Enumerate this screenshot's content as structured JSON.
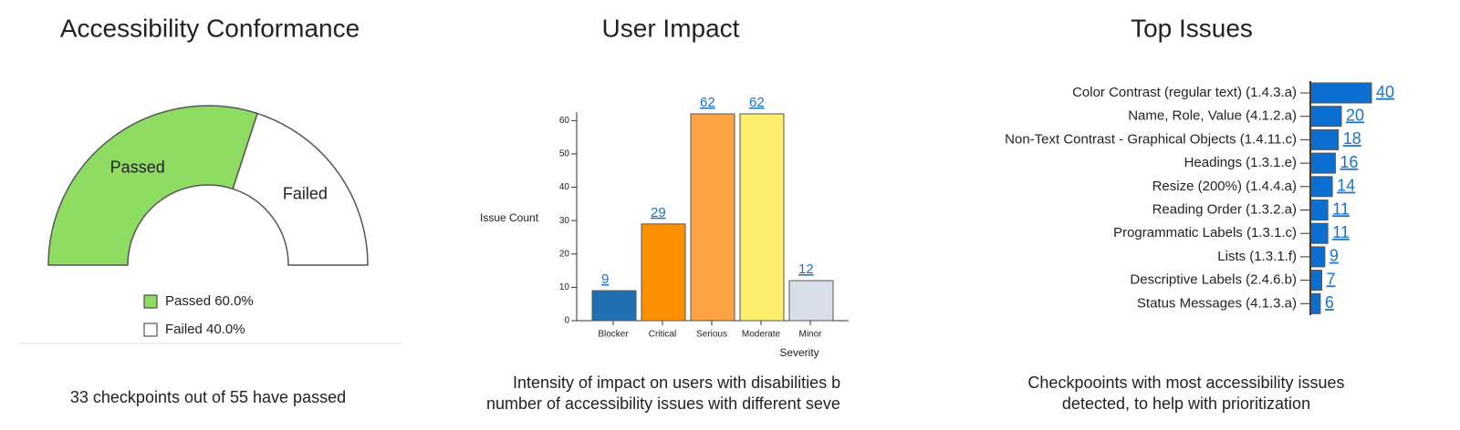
{
  "chart_data": [
    {
      "type": "gauge",
      "title": "Accessibility Conformance",
      "categories": [
        "Passed",
        "Failed"
      ],
      "values": [
        60,
        40
      ],
      "value_labels": [
        "60.0%",
        "40.0%"
      ],
      "colors": [
        "#8fdc63",
        "#ffffff"
      ],
      "caption": [
        "33 checkpoints out of 55 have passed"
      ]
    },
    {
      "type": "bar",
      "title": "User Impact",
      "categories": [
        "Blocker",
        "Critical",
        "Serious",
        "Moderate",
        "Minor"
      ],
      "values": [
        9,
        29,
        62,
        62,
        12
      ],
      "colors": [
        "#1f6fb2",
        "#fb9100",
        "#fda445",
        "#fef06c",
        "#d9dfe9"
      ],
      "ylim": [
        0,
        62
      ],
      "yticks": [
        0,
        10,
        20,
        30,
        40,
        50,
        60
      ],
      "y_label": "Issue Count",
      "x_label": "Severity",
      "caption": [
        "Intensity of impact on users with disabilities b",
        "number of accessibility issues with different seve"
      ]
    },
    {
      "type": "bar",
      "horizontal": true,
      "title": "Top Issues",
      "categories": [
        "Color Contrast (regular text) (1.4.3.a)",
        "Name, Role, Value (4.1.2.a)",
        "Non-Text Contrast - Graphical Objects (1.4.11.c)",
        "Headings (1.3.1.e)",
        "Resize (200%) (1.4.4.a)",
        "Reading Order (1.3.2.a)",
        "Programmatic Labels (1.3.1.c)",
        "Lists (1.3.1.f)",
        "Descriptive Labels (2.4.6.b)",
        "Status Messages (4.1.3.a)"
      ],
      "values": [
        40,
        20,
        18,
        16,
        14,
        11,
        11,
        9,
        7,
        6
      ],
      "color": "#0a6fd0",
      "xlim": [
        0,
        40
      ],
      "caption": [
        "Checkpooints with most accessibility issues",
        "detected, to help with prioritization"
      ]
    }
  ]
}
